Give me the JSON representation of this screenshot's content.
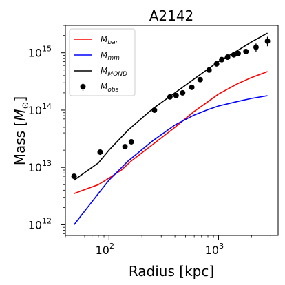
{
  "chart_data": {
    "type": "line",
    "title": "A2142",
    "xlabel": "Radius [kpc]",
    "ylabel": "Mass [M_⊙]",
    "ylabel_main": "Mass [",
    "ylabel_sym": "M",
    "ylabel_sub": "⊙",
    "ylabel_end": "]",
    "xscale": "log",
    "yscale": "log",
    "xlim": [
      40,
      3500
    ],
    "ylim": [
      650000000000.0,
      3000000000000000.0
    ],
    "x_ticks": [
      {
        "value": 100,
        "base": "10",
        "exp": "2"
      },
      {
        "value": 1000,
        "base": "10",
        "exp": "3"
      }
    ],
    "y_ticks": [
      {
        "value": 1000000000000.0,
        "base": "10",
        "exp": "12"
      },
      {
        "value": 10000000000000.0,
        "base": "10",
        "exp": "13"
      },
      {
        "value": 100000000000000.0,
        "base": "10",
        "exp": "14"
      },
      {
        "value": 1000000000000000.0,
        "base": "10",
        "exp": "15"
      }
    ],
    "legend_position": "top-left",
    "series": [
      {
        "name": "M_bar",
        "sym": "M",
        "sub": "bar",
        "color": "#ff0000",
        "style": "line",
        "x": [
          48,
          80,
          100,
          130,
          160,
          250,
          400,
          600,
          800,
          1000,
          1500,
          2000,
          2800
        ],
        "y": [
          3500000000000.0,
          5000000000000.0,
          6500000000000.0,
          9000000000000.0,
          13000000000000.0,
          25000000000000.0,
          50000000000000.0,
          95000000000000.0,
          140000000000000.0,
          190000000000000.0,
          290000000000000.0,
          370000000000000.0,
          470000000000000.0
        ]
      },
      {
        "name": "M_mm",
        "sym": "M",
        "sub": "mm",
        "color": "#0000ff",
        "style": "line",
        "x": [
          48,
          80,
          100,
          150,
          250,
          400,
          600,
          800,
          1000,
          1500,
          2000,
          2800
        ],
        "y": [
          1000000000000.0,
          3500000000000.0,
          6000000000000.0,
          13000000000000.0,
          29000000000000.0,
          55000000000000.0,
          82000000000000.0,
          102000000000000.0,
          118000000000000.0,
          142000000000000.0,
          160000000000000.0,
          178000000000000.0
        ]
      },
      {
        "name": "M_MOND",
        "sym": "M",
        "sub": "MOND",
        "color": "#000000",
        "style": "line",
        "x": [
          48,
          80,
          100,
          150,
          250,
          400,
          600,
          800,
          1000,
          1500,
          2000,
          2800
        ],
        "y": [
          6000000000000.0,
          12000000000000.0,
          20000000000000.0,
          45000000000000.0,
          105000000000000.0,
          200000000000000.0,
          350000000000000.0,
          520000000000000.0,
          700000000000000.0,
          1100000000000000.0,
          1550000000000000.0,
          2200000000000000.0
        ]
      },
      {
        "name": "M_obs",
        "sym": "M",
        "sub": "obs",
        "color": "#000000",
        "style": "errorbar",
        "x": [
          48,
          83,
          140,
          160,
          260,
          360,
          410,
          470,
          570,
          680,
          820,
          960,
          1070,
          1210,
          1380,
          1510,
          1780,
          2200,
          2800
        ],
        "y": [
          7000000000000.0,
          18500000000000.0,
          23000000000000.0,
          28000000000000.0,
          100000000000000.0,
          170000000000000.0,
          180000000000000.0,
          200000000000000.0,
          250000000000000.0,
          340000000000000.0,
          500000000000000.0,
          640000000000000.0,
          760000000000000.0,
          840000000000000.0,
          920000000000000.0,
          970000000000000.0,
          1050000000000000.0,
          1250000000000000.0,
          1600000000000000.0
        ],
        "yerr_lo": [
          1000000000000.0,
          2000000000000.0,
          2500000000000.0,
          3000000000000.0,
          8000000000000.0,
          12000000000000.0,
          13000000000000.0,
          14000000000000.0,
          18000000000000.0,
          35000000000000.0,
          35000000000000.0,
          45000000000000.0,
          50000000000000.0,
          60000000000000.0,
          70000000000000.0,
          80000000000000.0,
          110000000000000.0,
          200000000000000.0,
          300000000000000.0
        ],
        "yerr_hi": [
          1000000000000.0,
          2000000000000.0,
          2500000000000.0,
          3000000000000.0,
          8000000000000.0,
          12000000000000.0,
          13000000000000.0,
          14000000000000.0,
          18000000000000.0,
          35000000000000.0,
          35000000000000.0,
          45000000000000.0,
          50000000000000.0,
          60000000000000.0,
          70000000000000.0,
          80000000000000.0,
          110000000000000.0,
          200000000000000.0,
          300000000000000.0
        ]
      }
    ]
  }
}
